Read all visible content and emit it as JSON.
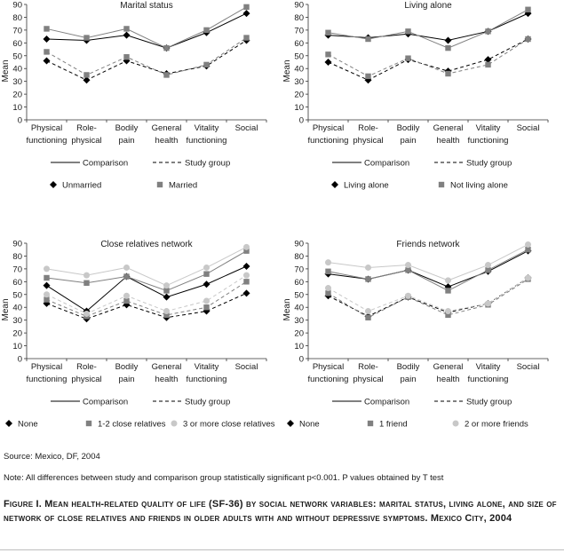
{
  "chart_data": [
    {
      "type": "line",
      "title": "Marital status",
      "ylabel": "Mean",
      "ylim": [
        0,
        90
      ],
      "categories": [
        [
          "Physical",
          "functioning"
        ],
        [
          "Role-",
          "physical"
        ],
        [
          "Bodily",
          "pain"
        ],
        [
          "General",
          "health"
        ],
        [
          "Vitality",
          "functioning"
        ],
        [
          "Social"
        ]
      ],
      "line_legend": {
        "comparison": "Comparison",
        "study": "Study group"
      },
      "series": [
        {
          "name": "Unmarried",
          "marker": "diamond",
          "color": "#000000",
          "comparison": [
            63,
            62,
            66,
            56,
            68,
            83
          ],
          "study": [
            46,
            31,
            46,
            36,
            42,
            62
          ]
        },
        {
          "name": "Married",
          "marker": "square",
          "color": "#808080",
          "comparison": [
            71,
            64,
            71,
            56,
            70,
            88
          ],
          "study": [
            53,
            35,
            49,
            35,
            43,
            64
          ]
        }
      ]
    },
    {
      "type": "line",
      "title": "Living alone",
      "ylabel": "Mean",
      "ylim": [
        0,
        90
      ],
      "categories": [
        [
          "Physical",
          "functioning"
        ],
        [
          "Role-",
          "physical"
        ],
        [
          "Bodily",
          "pain"
        ],
        [
          "General",
          "health"
        ],
        [
          "Vitality",
          "functioning"
        ],
        [
          "Social"
        ]
      ],
      "line_legend": {
        "comparison": "Comparison",
        "study": "Study group"
      },
      "series": [
        {
          "name": "Living alone",
          "marker": "diamond",
          "color": "#000000",
          "comparison": [
            66,
            64,
            67,
            62,
            69,
            83
          ],
          "study": [
            45,
            31,
            47,
            38,
            47,
            63
          ]
        },
        {
          "name": "Not living alone",
          "marker": "square",
          "color": "#808080",
          "comparison": [
            68,
            63,
            69,
            56,
            69,
            86
          ],
          "study": [
            51,
            34,
            48,
            36,
            43,
            63
          ]
        }
      ]
    },
    {
      "type": "line",
      "title": "Close relatives network",
      "ylabel": "Mean",
      "ylim": [
        0,
        90
      ],
      "categories": [
        [
          "Physical",
          "functioning"
        ],
        [
          "Role-",
          "physical"
        ],
        [
          "Bodily",
          "pain"
        ],
        [
          "General",
          "health"
        ],
        [
          "Vitality",
          "functioning"
        ],
        [
          "Social"
        ]
      ],
      "line_legend": {
        "comparison": "Comparison",
        "study": "Study group"
      },
      "series": [
        {
          "name": "None",
          "marker": "diamond",
          "color": "#000000",
          "comparison": [
            57,
            37,
            64,
            48,
            58,
            72
          ],
          "study": [
            43,
            31,
            42,
            32,
            37,
            51
          ]
        },
        {
          "name": "1-2 close relatives",
          "marker": "square",
          "color": "#808080",
          "comparison": [
            63,
            59,
            64,
            53,
            66,
            84
          ],
          "study": [
            46,
            33,
            45,
            34,
            40,
            60
          ]
        },
        {
          "name": "3 or more close relatives",
          "marker": "circle",
          "color": "#c8c8c8",
          "comparison": [
            70,
            65,
            71,
            57,
            71,
            87
          ],
          "study": [
            50,
            35,
            49,
            37,
            45,
            65
          ]
        }
      ]
    },
    {
      "type": "line",
      "title": "Friends network",
      "ylabel": "Mean",
      "ylim": [
        0,
        90
      ],
      "categories": [
        [
          "Physical",
          "functioning"
        ],
        [
          "Role-",
          "physical"
        ],
        [
          "Bodily",
          "pain"
        ],
        [
          "General",
          "health"
        ],
        [
          "Vitality",
          "functioning"
        ],
        [
          "Social"
        ]
      ],
      "line_legend": {
        "comparison": "Comparison",
        "study": "Study group"
      },
      "series": [
        {
          "name": "None",
          "marker": "diamond",
          "color": "#000000",
          "comparison": [
            66,
            62,
            69,
            56,
            68,
            84
          ],
          "study": [
            49,
            33,
            48,
            36,
            43,
            63
          ]
        },
        {
          "name": "1 friend",
          "marker": "square",
          "color": "#808080",
          "comparison": [
            68,
            62,
            69,
            53,
            69,
            85
          ],
          "study": [
            51,
            32,
            48,
            34,
            42,
            62
          ]
        },
        {
          "name": "2 or more friends",
          "marker": "circle",
          "color": "#c8c8c8",
          "comparison": [
            75,
            71,
            73,
            61,
            73,
            89
          ],
          "study": [
            55,
            37,
            49,
            37,
            43,
            63
          ]
        }
      ]
    }
  ],
  "source": "Source: Mexico, DF, 2004",
  "note": "Note: All differences between study and comparison group statistically significant p<0.001. P values obtained by T test",
  "caption": "Figure I. Mean health-related quality of life (SF-36) by social network variables: marital status, living alone, and size of network of close relatives and friends in older adults with and without depressive symptoms. Mexico City, 2004"
}
